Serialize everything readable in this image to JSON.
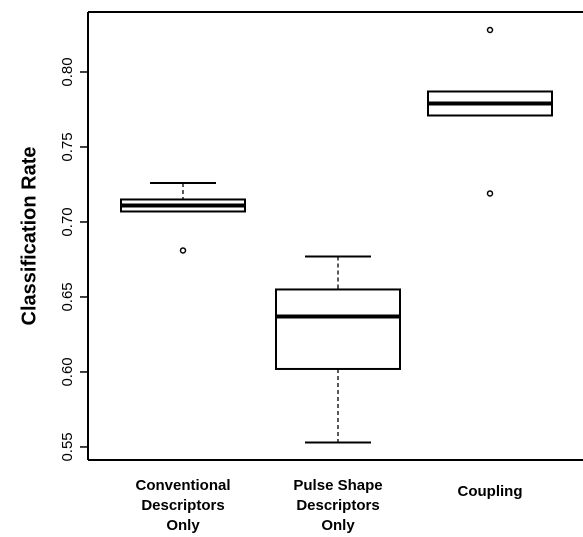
{
  "chart_data": {
    "type": "box",
    "y_label": "Classification Rate",
    "categories": [
      [
        "Conventional",
        "Descriptors",
        "Only"
      ],
      [
        "Pulse Shape",
        "Descriptors",
        "Only"
      ],
      [
        "Coupling"
      ]
    ],
    "boxes": [
      {
        "whisker_low": 0.707,
        "q1": 0.707,
        "median": 0.711,
        "q3": 0.715,
        "whisker_high": 0.726,
        "outliers": [
          0.681
        ]
      },
      {
        "whisker_low": 0.553,
        "q1": 0.602,
        "median": 0.637,
        "q3": 0.655,
        "whisker_high": 0.677,
        "outliers": []
      },
      {
        "whisker_low": 0.771,
        "q1": 0.771,
        "median": 0.779,
        "q3": 0.787,
        "whisker_high": 0.787,
        "outliers": [
          0.828,
          0.719
        ]
      }
    ],
    "ylim": [
      0.5413,
      0.84
    ],
    "yticks": [
      {
        "value": 0.55,
        "label": "0.55"
      },
      {
        "value": 0.6,
        "label": "0.60"
      },
      0.65,
      {
        "value": 0.7,
        "label": "0.70"
      },
      0.75,
      {
        "value": 0.8,
        "label": "0.80"
      }
    ]
  }
}
